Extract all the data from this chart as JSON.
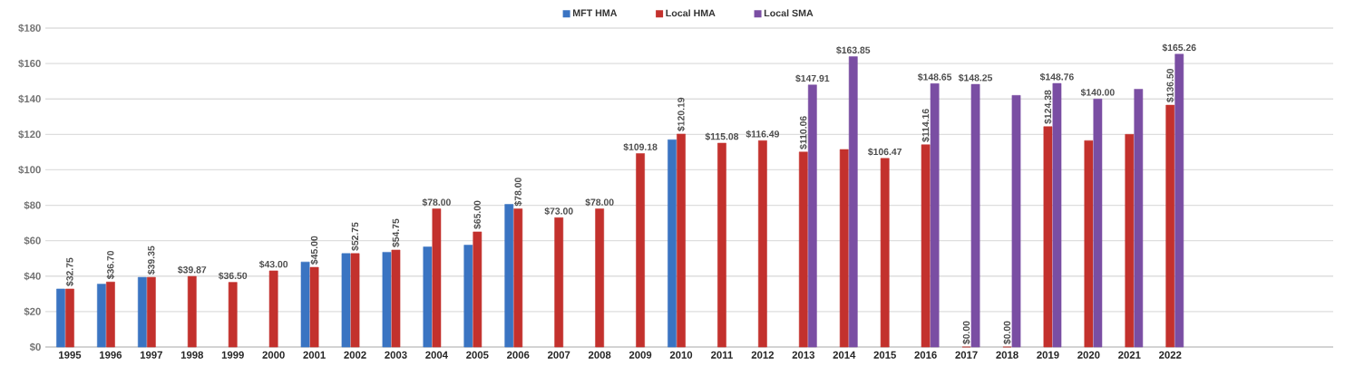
{
  "chart_data": {
    "type": "bar",
    "categories": [
      "1995",
      "1996",
      "1997",
      "1998",
      "1999",
      "2000",
      "2001",
      "2002",
      "2003",
      "2004",
      "2005",
      "2006",
      "2007",
      "2008",
      "2009",
      "2010",
      "2011",
      "2012",
      "2013",
      "2014",
      "2015",
      "2016",
      "2017",
      "2018",
      "2019",
      "2020",
      "2021",
      "2022"
    ],
    "series": [
      {
        "name": "MFT HMA",
        "color": "#3a74c2",
        "values": [
          32.75,
          35.5,
          39.35,
          null,
          null,
          null,
          48,
          52.75,
          53.5,
          56.5,
          57.5,
          80.5,
          null,
          null,
          null,
          117,
          null,
          null,
          null,
          null,
          null,
          null,
          null,
          null,
          null,
          null,
          null,
          null
        ]
      },
      {
        "name": "Local HMA",
        "color": "#c3312d",
        "values": [
          32.75,
          36.7,
          39.35,
          39.87,
          36.5,
          43.0,
          45.0,
          52.75,
          54.75,
          78.0,
          65.0,
          78.0,
          73.0,
          78.0,
          109.18,
          120.19,
          115.08,
          116.49,
          110.06,
          111.5,
          106.47,
          114.16,
          0,
          0,
          124.38,
          116.5,
          120,
          136.5
        ],
        "value_labels": [
          "$32.75",
          "$36.70",
          "$39.35",
          "$39.87",
          "$36.50",
          "$43.00",
          "$45.00",
          "$52.75",
          "$54.75",
          "$78.00",
          "$65.00",
          "$78.00",
          "$73.00",
          "$78.00",
          "$109.18",
          "$120.19",
          "$115.08",
          "$116.49",
          "$110.06",
          null,
          "$106.47",
          "$114.16",
          "$0.00",
          "$0.00",
          "$124.38",
          null,
          null,
          "$136.50"
        ]
      },
      {
        "name": "Local SMA",
        "color": "#7a4ea3",
        "values": [
          null,
          null,
          null,
          null,
          null,
          null,
          null,
          null,
          null,
          null,
          null,
          null,
          null,
          null,
          null,
          null,
          null,
          null,
          147.91,
          163.85,
          null,
          148.65,
          148.25,
          142,
          148.76,
          140.0,
          145.5,
          165.26
        ],
        "value_labels": [
          null,
          null,
          null,
          null,
          null,
          null,
          null,
          null,
          null,
          null,
          null,
          null,
          null,
          null,
          null,
          null,
          null,
          null,
          "$147.91",
          "$163.85",
          null,
          "$148.65",
          "$148.25",
          null,
          "$148.76",
          "$140.00",
          null,
          "$165.26"
        ]
      }
    ],
    "ylim": [
      0,
      180
    ],
    "yticks": [
      {
        "value": 0,
        "label": "$0"
      },
      {
        "value": 20,
        "label": "$20"
      },
      {
        "value": 40,
        "label": "$40"
      },
      {
        "value": 60,
        "label": "$60"
      },
      {
        "value": 80,
        "label": "$80"
      },
      {
        "value": 100,
        "label": "$100"
      },
      {
        "value": 120,
        "label": "$120"
      },
      {
        "value": 140,
        "label": "$140"
      },
      {
        "value": 160,
        "label": "$160"
      },
      {
        "value": 180,
        "label": "$180"
      }
    ],
    "grid": "y",
    "legend": "top"
  }
}
